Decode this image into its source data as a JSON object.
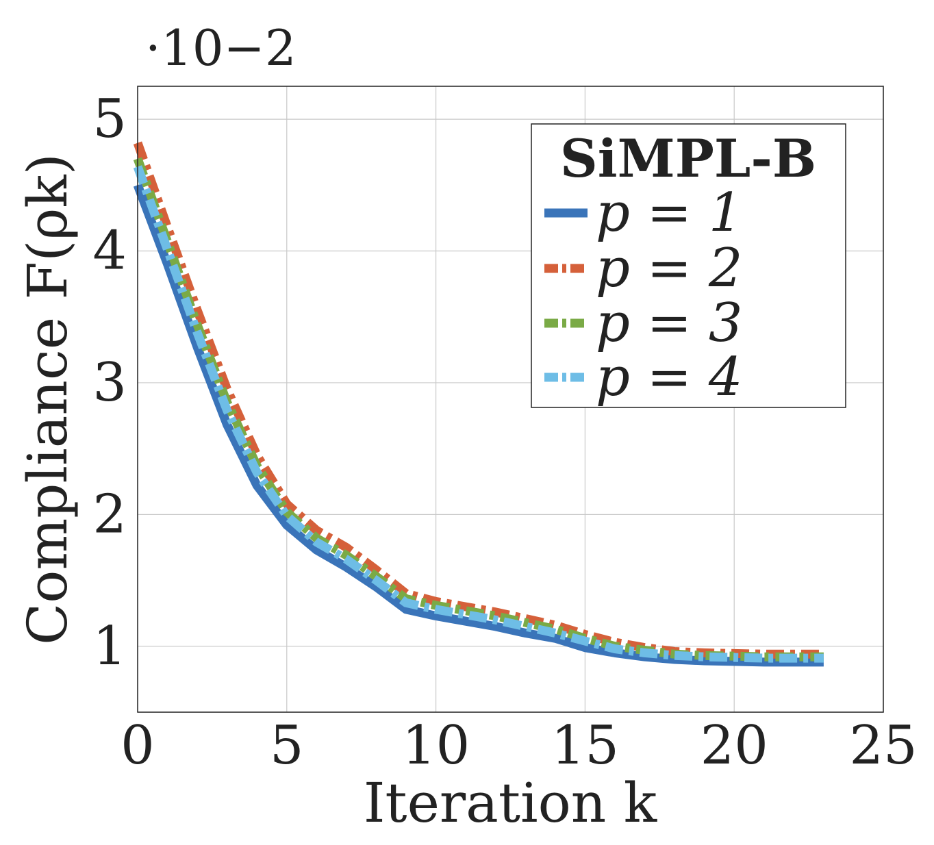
{
  "chart_data": {
    "type": "line",
    "title": "",
    "xlabel": "Iteration k",
    "ylabel": "Compliance F(ρk)",
    "y_multiplier": "·10−2",
    "xlim": [
      0,
      25
    ],
    "ylim": [
      0.5,
      5.25
    ],
    "xticks": [
      0,
      5,
      10,
      15,
      20,
      25
    ],
    "yticks": [
      1,
      2,
      3,
      4,
      5
    ],
    "grid": true,
    "legend": {
      "title": "SiMPL-B",
      "placement": "top-right"
    },
    "x": [
      0,
      1,
      2,
      3,
      4,
      5,
      6,
      7,
      8,
      9,
      10,
      11,
      12,
      13,
      14,
      15,
      16,
      17,
      18,
      19,
      20,
      21,
      22,
      23
    ],
    "series": [
      {
        "name": "p = 1",
        "color": "#3a74b9",
        "style": "solid",
        "values": [
          4.5,
          3.9,
          3.27,
          2.68,
          2.22,
          1.92,
          1.73,
          1.6,
          1.45,
          1.28,
          1.23,
          1.19,
          1.15,
          1.1,
          1.06,
          0.99,
          0.95,
          0.92,
          0.9,
          0.89,
          0.885,
          0.88,
          0.88,
          0.88
        ]
      },
      {
        "name": "p = 2",
        "color": "#d5603a",
        "style": "dashdot",
        "values": [
          4.82,
          4.18,
          3.55,
          2.95,
          2.45,
          2.08,
          1.88,
          1.75,
          1.58,
          1.4,
          1.34,
          1.3,
          1.26,
          1.21,
          1.16,
          1.09,
          1.03,
          0.99,
          0.96,
          0.95,
          0.945,
          0.94,
          0.94,
          0.94
        ]
      },
      {
        "name": "p = 3",
        "color": "#7aaa46",
        "style": "dashdot",
        "values": [
          4.7,
          4.07,
          3.44,
          2.85,
          2.37,
          2.02,
          1.82,
          1.69,
          1.53,
          1.36,
          1.31,
          1.27,
          1.23,
          1.18,
          1.13,
          1.06,
          1.0,
          0.97,
          0.94,
          0.93,
          0.925,
          0.92,
          0.92,
          0.92
        ]
      },
      {
        "name": "p = 4",
        "color": "#6ebde6",
        "style": "dashdot",
        "values": [
          4.64,
          4.01,
          3.38,
          2.79,
          2.32,
          1.99,
          1.79,
          1.66,
          1.5,
          1.33,
          1.28,
          1.24,
          1.2,
          1.15,
          1.1,
          1.04,
          0.98,
          0.95,
          0.93,
          0.92,
          0.915,
          0.91,
          0.91,
          0.91
        ]
      }
    ]
  }
}
